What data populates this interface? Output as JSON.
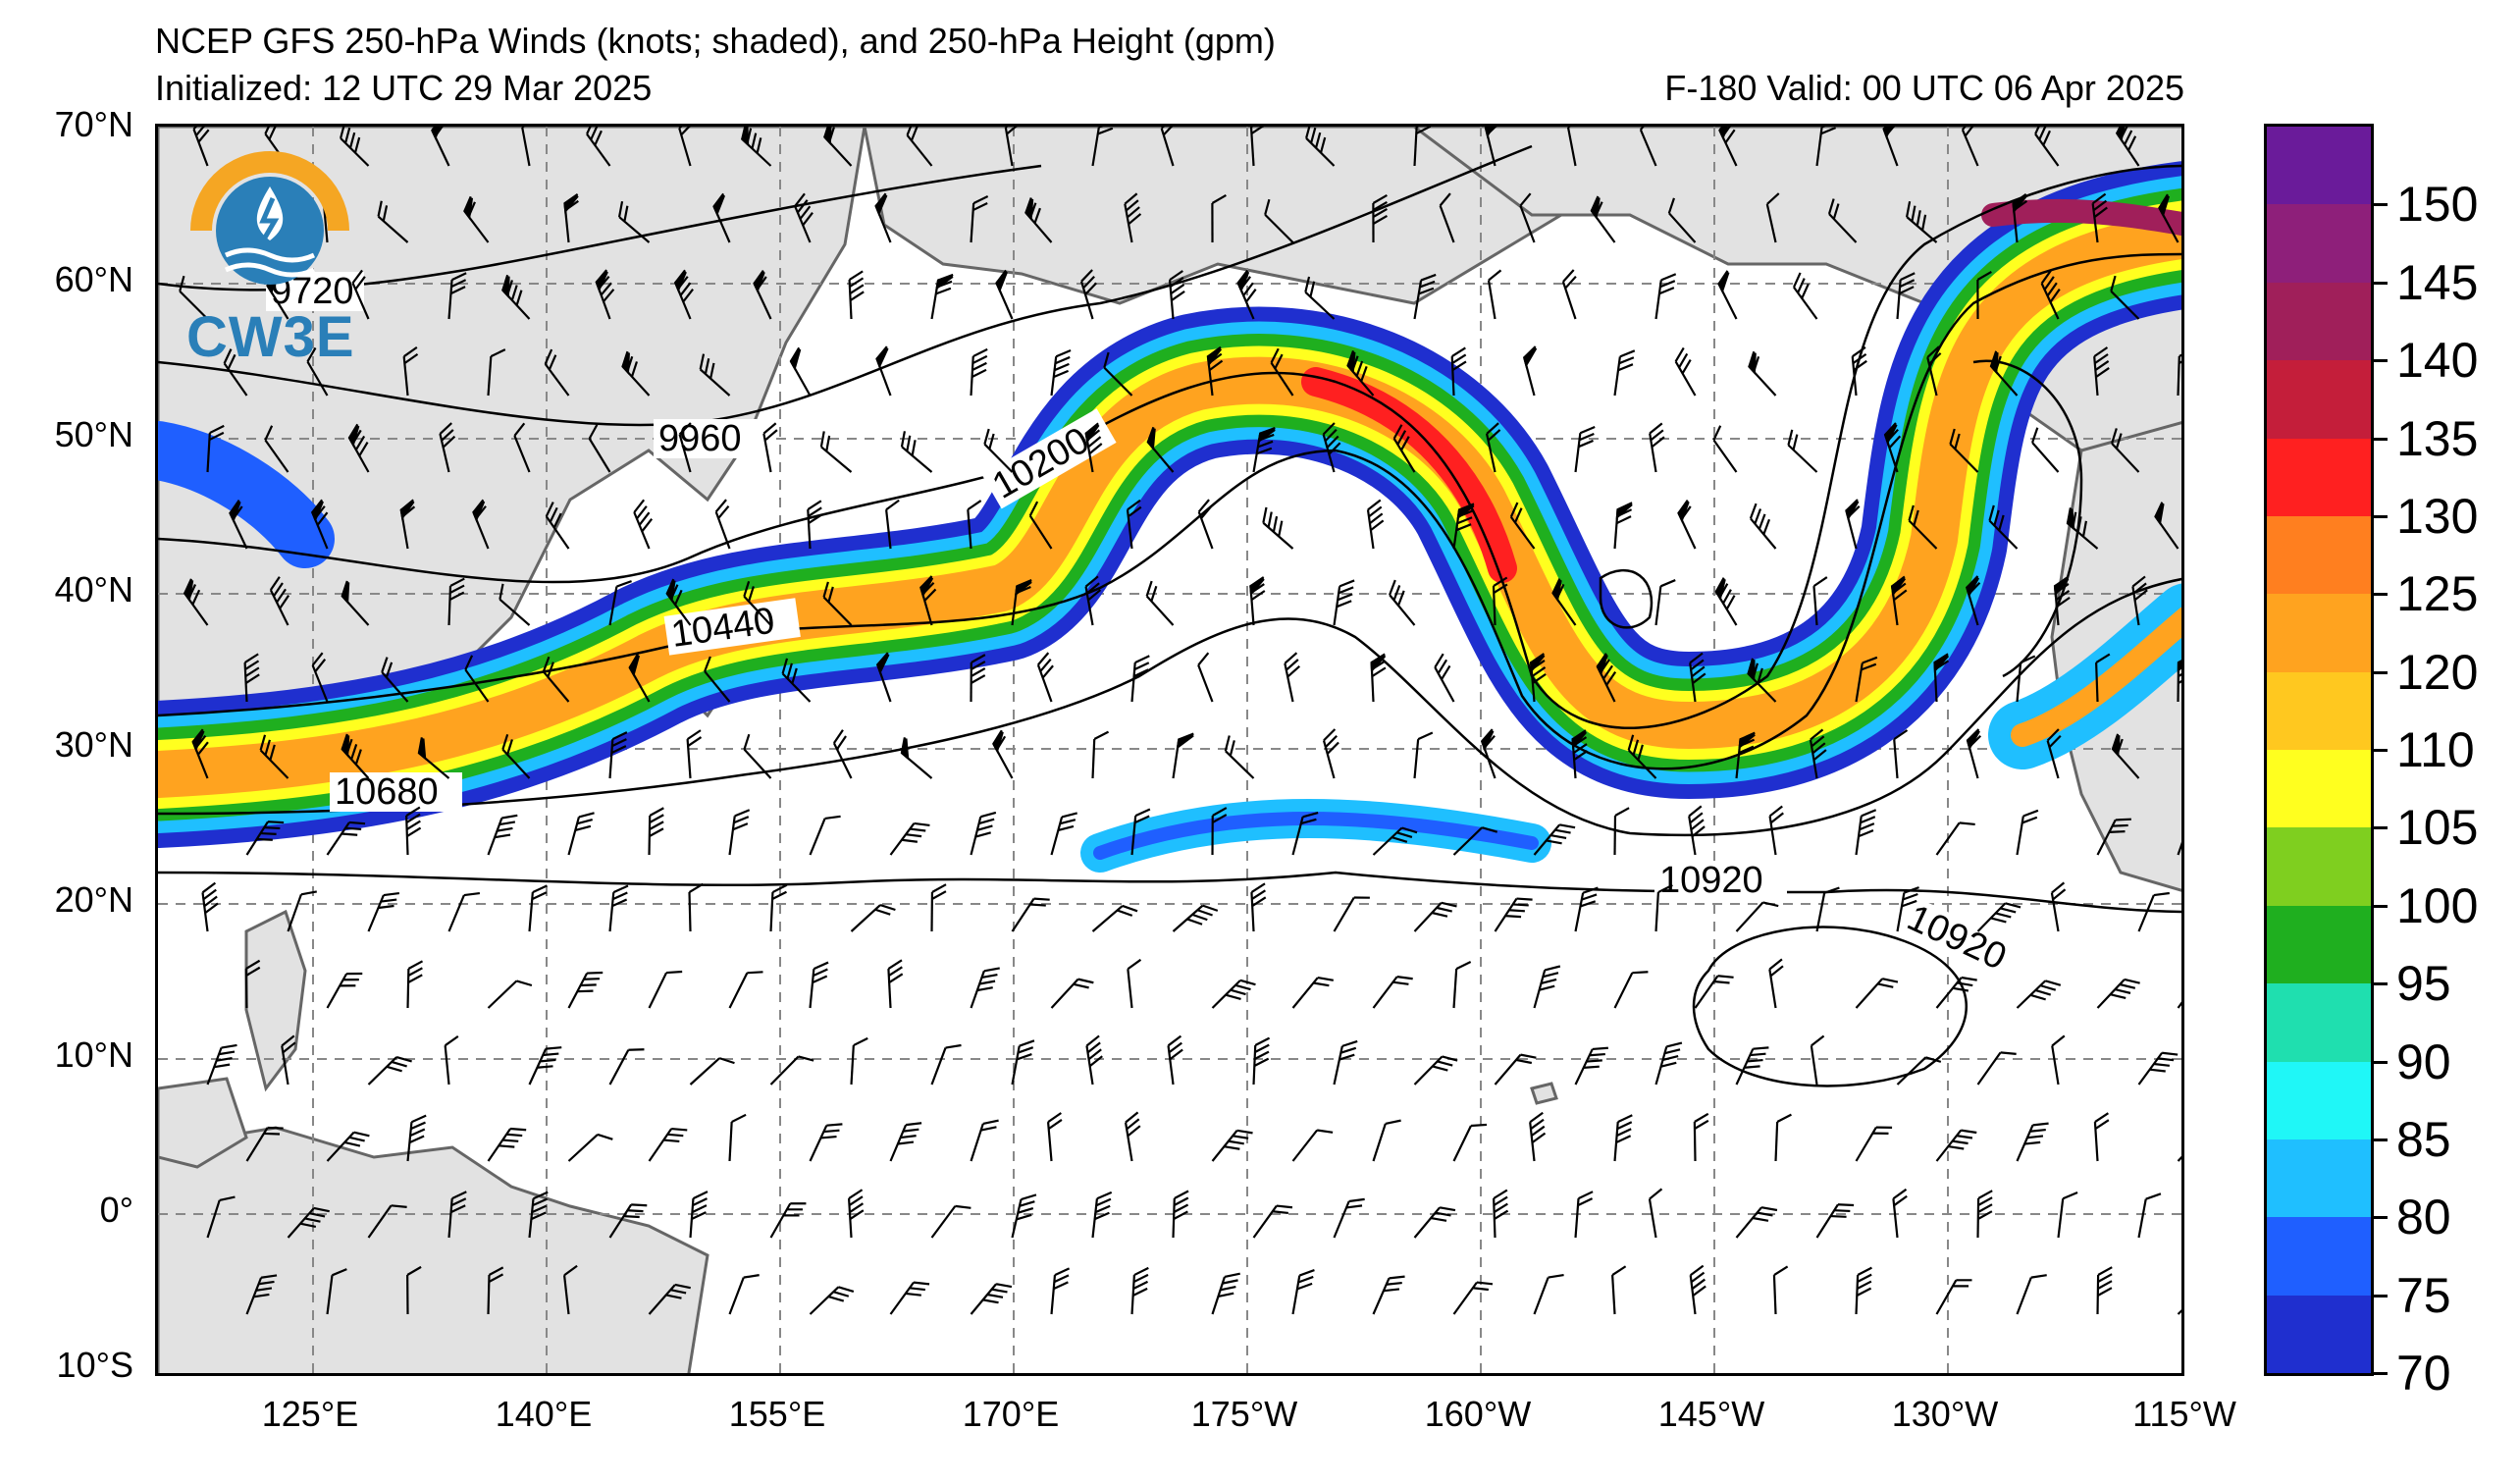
{
  "header": {
    "title": "NCEP GFS 250-hPa Winds (knots; shaded), and 250-hPa Height (gpm)",
    "initialized": "Initialized: 12 UTC 29 Mar 2025",
    "valid": "F-180  Valid: 00 UTC 06 Apr 2025"
  },
  "logo": {
    "text": "CW3E",
    "colors": {
      "arc": "#f5a623",
      "water": "#2a7fb8"
    }
  },
  "axes": {
    "lat_labels": [
      "70°N",
      "60°N",
      "50°N",
      "40°N",
      "30°N",
      "20°N",
      "10°N",
      "0°",
      "10°S"
    ],
    "lon_labels": [
      "125°E",
      "140°E",
      "155°E",
      "170°E",
      "175°W",
      "160°W",
      "145°W",
      "130°W",
      "115°W"
    ]
  },
  "contour_labels": [
    "9720",
    "9960",
    "10200",
    "10440",
    "10680",
    "10920",
    "10920"
  ],
  "colorbar": {
    "labels": [
      "150",
      "145",
      "140",
      "135",
      "130",
      "125",
      "120",
      "110",
      "105",
      "100",
      "95",
      "90",
      "85",
      "80",
      "75",
      "70"
    ],
    "colors": [
      "#6a1b9a",
      "#8e1f7a",
      "#a01f5a",
      "#c41e3a",
      "#ff2020",
      "#ff7f1f",
      "#ffa31f",
      "#ffc81f",
      "#ffff1f",
      "#7fcf1f",
      "#1faf1f",
      "#1fdfaf",
      "#1ff7f7",
      "#1fbfff",
      "#1f5fff",
      "#1f2fcf"
    ]
  }
}
